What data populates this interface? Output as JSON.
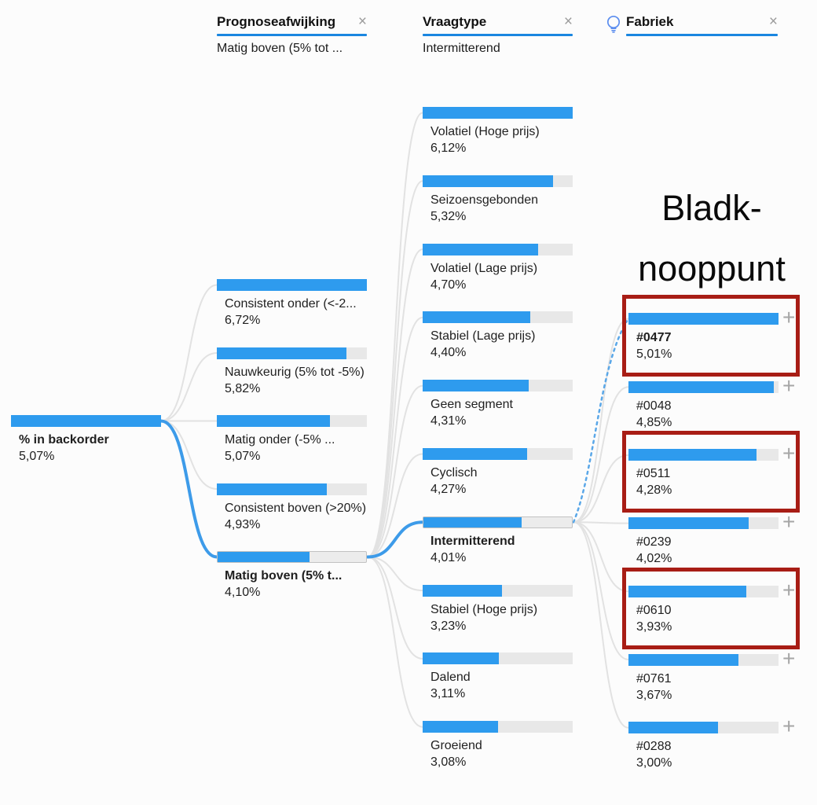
{
  "colors": {
    "bar_fill": "#2E9BEE",
    "bar_track": "#E8E8E8",
    "header_underline": "#1A86E0",
    "link": "#E2E2E2",
    "selected_link": "#3D9BE9",
    "recommend_link": "#5AA7E8",
    "highlight_box": "#A81D15",
    "text": "#1F1F1F",
    "icon_gray": "#9B9B9B"
  },
  "icons": {
    "close": "×",
    "expand": "+",
    "bulb": "lightbulb-icon"
  },
  "headers": [
    {
      "label": "Prognoseafwijking",
      "subtitle": "Matig boven (5% tot ...",
      "bulb": false
    },
    {
      "label": "Vraagtype",
      "subtitle": "Intermitterend",
      "bulb": false
    },
    {
      "label": "Fabriek",
      "subtitle": "",
      "bulb": true
    }
  ],
  "root": {
    "label": "% in backorder",
    "value": "5,07%",
    "num": 5.07
  },
  "annotation": {
    "line1": "Bladk-",
    "line2": "nooppunt"
  },
  "columns": [
    {
      "field": "Prognoseafwijking",
      "expandable": false,
      "nodes": [
        {
          "label": "Consistent onder (<-2...",
          "value": "6,72%",
          "num": 6.72
        },
        {
          "label": "Nauwkeurig (5% tot -5%)",
          "value": "5,82%",
          "num": 5.82
        },
        {
          "label": "Matig onder (-5% ...",
          "value": "5,07%",
          "num": 5.07
        },
        {
          "label": "Consistent boven (>20%)",
          "value": "4,93%",
          "num": 4.93
        },
        {
          "label": "Matig boven (5% t...",
          "value": "4,10%",
          "num": 4.1,
          "selected": true
        }
      ]
    },
    {
      "field": "Vraagtype",
      "expandable": false,
      "nodes": [
        {
          "label": "Volatiel (Hoge prijs)",
          "value": "6,12%",
          "num": 6.12
        },
        {
          "label": "Seizoensgebonden",
          "value": "5,32%",
          "num": 5.32
        },
        {
          "label": "Volatiel (Lage prijs)",
          "value": "4,70%",
          "num": 4.7
        },
        {
          "label": "Stabiel (Lage prijs)",
          "value": "4,40%",
          "num": 4.4
        },
        {
          "label": "Geen segment",
          "value": "4,31%",
          "num": 4.31
        },
        {
          "label": "Cyclisch",
          "value": "4,27%",
          "num": 4.27
        },
        {
          "label": "Intermitterend",
          "value": "4,01%",
          "num": 4.01,
          "selected": true
        },
        {
          "label": "Stabiel (Hoge prijs)",
          "value": "3,23%",
          "num": 3.23
        },
        {
          "label": "Dalend",
          "value": "3,11%",
          "num": 3.11
        },
        {
          "label": "Groeiend",
          "value": "3,08%",
          "num": 3.08
        }
      ]
    },
    {
      "field": "Fabriek",
      "expandable": true,
      "nodes": [
        {
          "label": "#0477",
          "value": "5,01%",
          "num": 5.01,
          "boxed": true,
          "bold": true,
          "recommended": true
        },
        {
          "label": "#0048",
          "value": "4,85%",
          "num": 4.85
        },
        {
          "label": "#0511",
          "value": "4,28%",
          "num": 4.28,
          "boxed": true
        },
        {
          "label": "#0239",
          "value": "4,02%",
          "num": 4.02
        },
        {
          "label": "#0610",
          "value": "3,93%",
          "num": 3.93,
          "boxed": true
        },
        {
          "label": "#0761",
          "value": "3,67%",
          "num": 3.67
        },
        {
          "label": "#0288",
          "value": "3,00%",
          "num": 3.0
        }
      ]
    }
  ],
  "chart_data": {
    "type": "bar",
    "subtype": "decomposition-tree",
    "measure": "% in backorder",
    "value_format": "comma-decimal percent",
    "root": {
      "label": "% in backorder",
      "value": 5.07
    },
    "levels": [
      {
        "field": "Prognoseafwijking",
        "selected": "Matig boven (5% t...",
        "categories": [
          "Consistent onder (<-2...",
          "Nauwkeurig (5% tot -5%)",
          "Matig onder (-5% ...",
          "Consistent boven (>20%)",
          "Matig boven (5% t..."
        ],
        "values": [
          6.72,
          5.82,
          5.07,
          4.93,
          4.1
        ]
      },
      {
        "field": "Vraagtype",
        "selected": "Intermitterend",
        "categories": [
          "Volatiel (Hoge prijs)",
          "Seizoensgebonden",
          "Volatiel (Lage prijs)",
          "Stabiel (Lage prijs)",
          "Geen segment",
          "Cyclisch",
          "Intermitterend",
          "Stabiel (Hoge prijs)",
          "Dalend",
          "Groeiend"
        ],
        "values": [
          6.12,
          5.32,
          4.7,
          4.4,
          4.31,
          4.27,
          4.01,
          3.23,
          3.11,
          3.08
        ]
      },
      {
        "field": "Fabriek",
        "selected": null,
        "categories": [
          "#0477",
          "#0048",
          "#0511",
          "#0239",
          "#0610",
          "#0761",
          "#0288"
        ],
        "values": [
          5.01,
          4.85,
          4.28,
          4.02,
          3.93,
          3.67,
          3.0
        ],
        "highlighted": [
          "#0477",
          "#0511",
          "#0610"
        ],
        "ai_recommended": [
          "#0477"
        ]
      }
    ],
    "annotation": "Bladk-nooppunt",
    "bars_scaled_to_level_max": true,
    "legend": "none",
    "grid": "off"
  }
}
